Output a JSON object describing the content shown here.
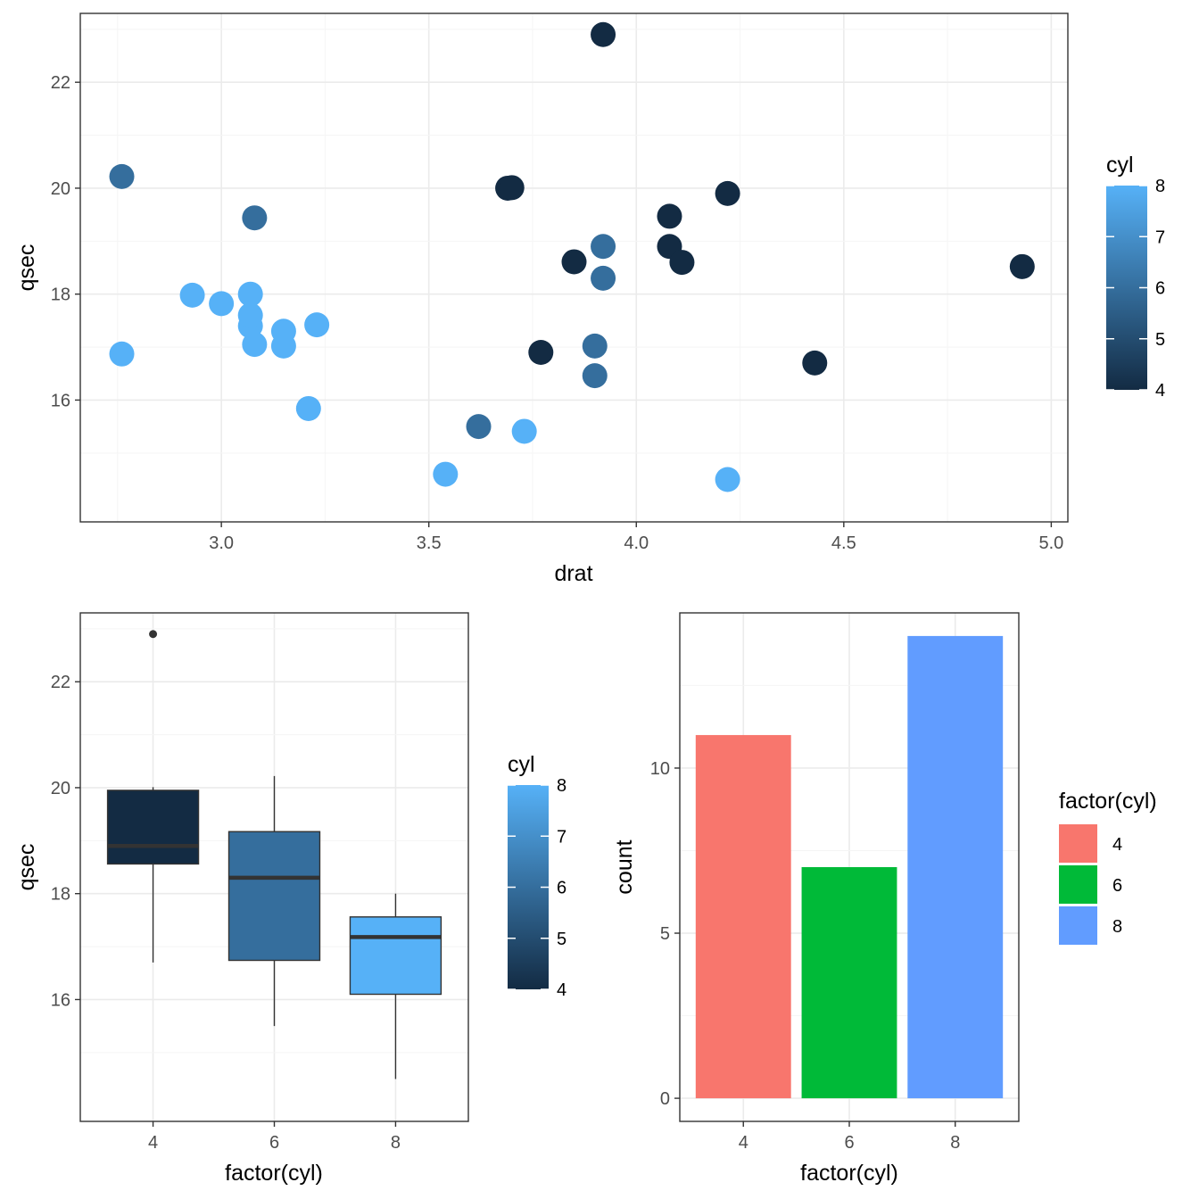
{
  "colors": {
    "cyl_low": "#132B43",
    "cyl_high": "#56B1F7",
    "cyl4": "#F8766D",
    "cyl6": "#00BA38",
    "cyl8": "#619CFF"
  },
  "chart_data": [
    {
      "type": "scatter",
      "xlabel": "drat",
      "ylabel": "qsec",
      "xlim": [
        2.66,
        5.04
      ],
      "ylim": [
        13.7,
        23.3
      ],
      "xticks": [
        3.0,
        3.5,
        4.0,
        4.5,
        5.0
      ],
      "xtick_labels": [
        "3.0",
        "3.5",
        "4.0",
        "4.5",
        "5.0"
      ],
      "yticks": [
        16,
        18,
        20,
        22
      ],
      "ytick_labels": [
        "16",
        "18",
        "20",
        "22"
      ],
      "grid": true,
      "color_legend": {
        "title": "cyl",
        "labels": [
          "8",
          "7",
          "6",
          "5",
          "4"
        ],
        "range": [
          4,
          8
        ],
        "placement": "right"
      },
      "points": [
        {
          "x": 3.9,
          "y": 16.46,
          "cyl": 6
        },
        {
          "x": 3.9,
          "y": 17.02,
          "cyl": 6
        },
        {
          "x": 3.85,
          "y": 18.61,
          "cyl": 4
        },
        {
          "x": 3.08,
          "y": 19.44,
          "cyl": 6
        },
        {
          "x": 3.15,
          "y": 17.02,
          "cyl": 8
        },
        {
          "x": 2.76,
          "y": 20.22,
          "cyl": 6
        },
        {
          "x": 3.21,
          "y": 15.84,
          "cyl": 8
        },
        {
          "x": 3.69,
          "y": 20.0,
          "cyl": 4
        },
        {
          "x": 3.92,
          "y": 22.9,
          "cyl": 4
        },
        {
          "x": 3.92,
          "y": 18.3,
          "cyl": 6
        },
        {
          "x": 3.92,
          "y": 18.9,
          "cyl": 6
        },
        {
          "x": 3.07,
          "y": 17.4,
          "cyl": 8
        },
        {
          "x": 3.07,
          "y": 17.6,
          "cyl": 8
        },
        {
          "x": 3.07,
          "y": 18.0,
          "cyl": 8
        },
        {
          "x": 2.93,
          "y": 17.98,
          "cyl": 8
        },
        {
          "x": 3.0,
          "y": 17.82,
          "cyl": 8
        },
        {
          "x": 3.23,
          "y": 17.42,
          "cyl": 8
        },
        {
          "x": 4.08,
          "y": 19.47,
          "cyl": 4
        },
        {
          "x": 4.93,
          "y": 18.52,
          "cyl": 4
        },
        {
          "x": 4.22,
          "y": 19.9,
          "cyl": 4
        },
        {
          "x": 3.7,
          "y": 20.01,
          "cyl": 4
        },
        {
          "x": 2.76,
          "y": 16.87,
          "cyl": 8
        },
        {
          "x": 3.15,
          "y": 17.3,
          "cyl": 8
        },
        {
          "x": 3.73,
          "y": 15.41,
          "cyl": 8
        },
        {
          "x": 3.08,
          "y": 17.05,
          "cyl": 8
        },
        {
          "x": 4.08,
          "y": 18.9,
          "cyl": 4
        },
        {
          "x": 4.43,
          "y": 16.7,
          "cyl": 4
        },
        {
          "x": 3.77,
          "y": 16.9,
          "cyl": 4
        },
        {
          "x": 4.22,
          "y": 14.5,
          "cyl": 8
        },
        {
          "x": 3.62,
          "y": 15.5,
          "cyl": 6
        },
        {
          "x": 3.54,
          "y": 14.6,
          "cyl": 8
        },
        {
          "x": 4.11,
          "y": 18.6,
          "cyl": 4
        }
      ]
    },
    {
      "type": "box",
      "xlabel": "factor(cyl)",
      "ylabel": "qsec",
      "categories": [
        "4",
        "6",
        "8"
      ],
      "ylim": [
        13.7,
        23.3
      ],
      "yticks": [
        16,
        18,
        20,
        22
      ],
      "ytick_labels": [
        "16",
        "18",
        "20",
        "22"
      ],
      "grid": true,
      "color_legend": {
        "title": "cyl",
        "labels": [
          "8",
          "7",
          "6",
          "5",
          "4"
        ],
        "range": [
          4,
          8
        ],
        "placement": "right"
      },
      "boxes": [
        {
          "category": "4",
          "cyl": 4,
          "min": 16.7,
          "q1": 18.56,
          "median": 18.9,
          "q3": 19.95,
          "max": 20.01,
          "outliers": [
            22.9
          ]
        },
        {
          "category": "6",
          "cyl": 6,
          "min": 15.5,
          "q1": 16.74,
          "median": 18.3,
          "q3": 19.17,
          "max": 20.22,
          "outliers": []
        },
        {
          "category": "8",
          "cyl": 8,
          "min": 14.5,
          "q1": 16.1,
          "median": 17.18,
          "q3": 17.56,
          "max": 18.0,
          "outliers": []
        }
      ]
    },
    {
      "type": "bar",
      "xlabel": "factor(cyl)",
      "ylabel": "count",
      "categories": [
        "4",
        "6",
        "8"
      ],
      "values": [
        11,
        7,
        14
      ],
      "ylim": [
        -0.7,
        14.7
      ],
      "yticks": [
        0,
        5,
        10
      ],
      "ytick_labels": [
        "0",
        "5",
        "10"
      ],
      "grid": true,
      "fill_legend": {
        "title": "factor(cyl)",
        "labels": [
          "4",
          "6",
          "8"
        ],
        "placement": "right"
      }
    }
  ]
}
